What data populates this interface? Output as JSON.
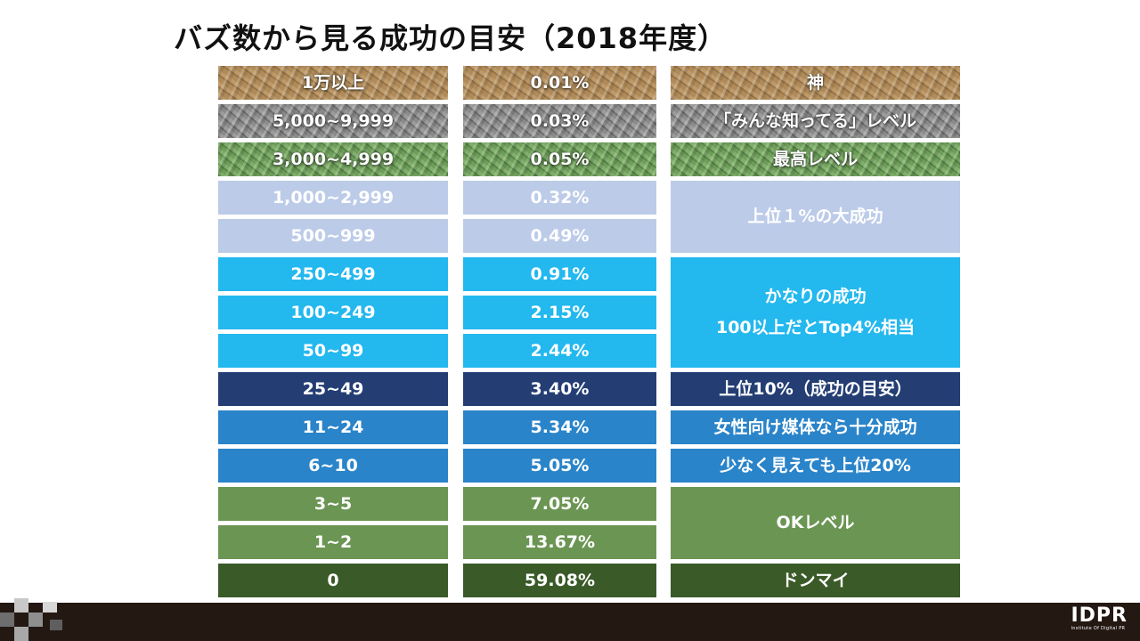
{
  "title": "バズ数から見る成功の目安（2018年度）",
  "rows": [
    {
      "range": "1万以上",
      "percent": "0.01%"
    },
    {
      "range": "5,000~9,999",
      "percent": "0.03%"
    },
    {
      "range": "3,000~4,999",
      "percent": "0.05%"
    },
    {
      "range": "1,000~2,999",
      "percent": "0.32%"
    },
    {
      "range": "500~999",
      "percent": "0.49%"
    },
    {
      "range": "250~499",
      "percent": "0.91%"
    },
    {
      "range": "100~249",
      "percent": "2.15%"
    },
    {
      "range": "50~99",
      "percent": "2.44%"
    },
    {
      "range": "25~49",
      "percent": "3.40%"
    },
    {
      "range": "11~24",
      "percent": "5.34%"
    },
    {
      "range": "6~10",
      "percent": "5.05%"
    },
    {
      "range": "3~5",
      "percent": "7.05%"
    },
    {
      "range": "1~2",
      "percent": "13.67%"
    },
    {
      "range": "0",
      "percent": "59.08%"
    }
  ],
  "labels": {
    "god": "神",
    "everyone_knows": "「みんな知ってる」レベル",
    "top_level": "最高レベル",
    "top1": "上位１%の大成功",
    "considerable_line1": "かなりの成功",
    "considerable_line2": "100以上だとTop4%相当",
    "top10": "上位10%（成功の目安）",
    "women_media": "女性向け媒体なら十分成功",
    "top20": "少なく見えても上位20%",
    "ok": "OKレベル",
    "donmai": "ドンマイ"
  },
  "colors": {
    "lavender": "#bccbe8",
    "sky_blue": "#23b8ee",
    "navy": "#243e74",
    "mid_blue": "#2a84c9",
    "olive_green": "#6b9553",
    "dark_green": "#3a5a28",
    "footer": "#241813"
  },
  "logo": {
    "main": "IDPR",
    "sub": "Institute Of Digital PR"
  }
}
